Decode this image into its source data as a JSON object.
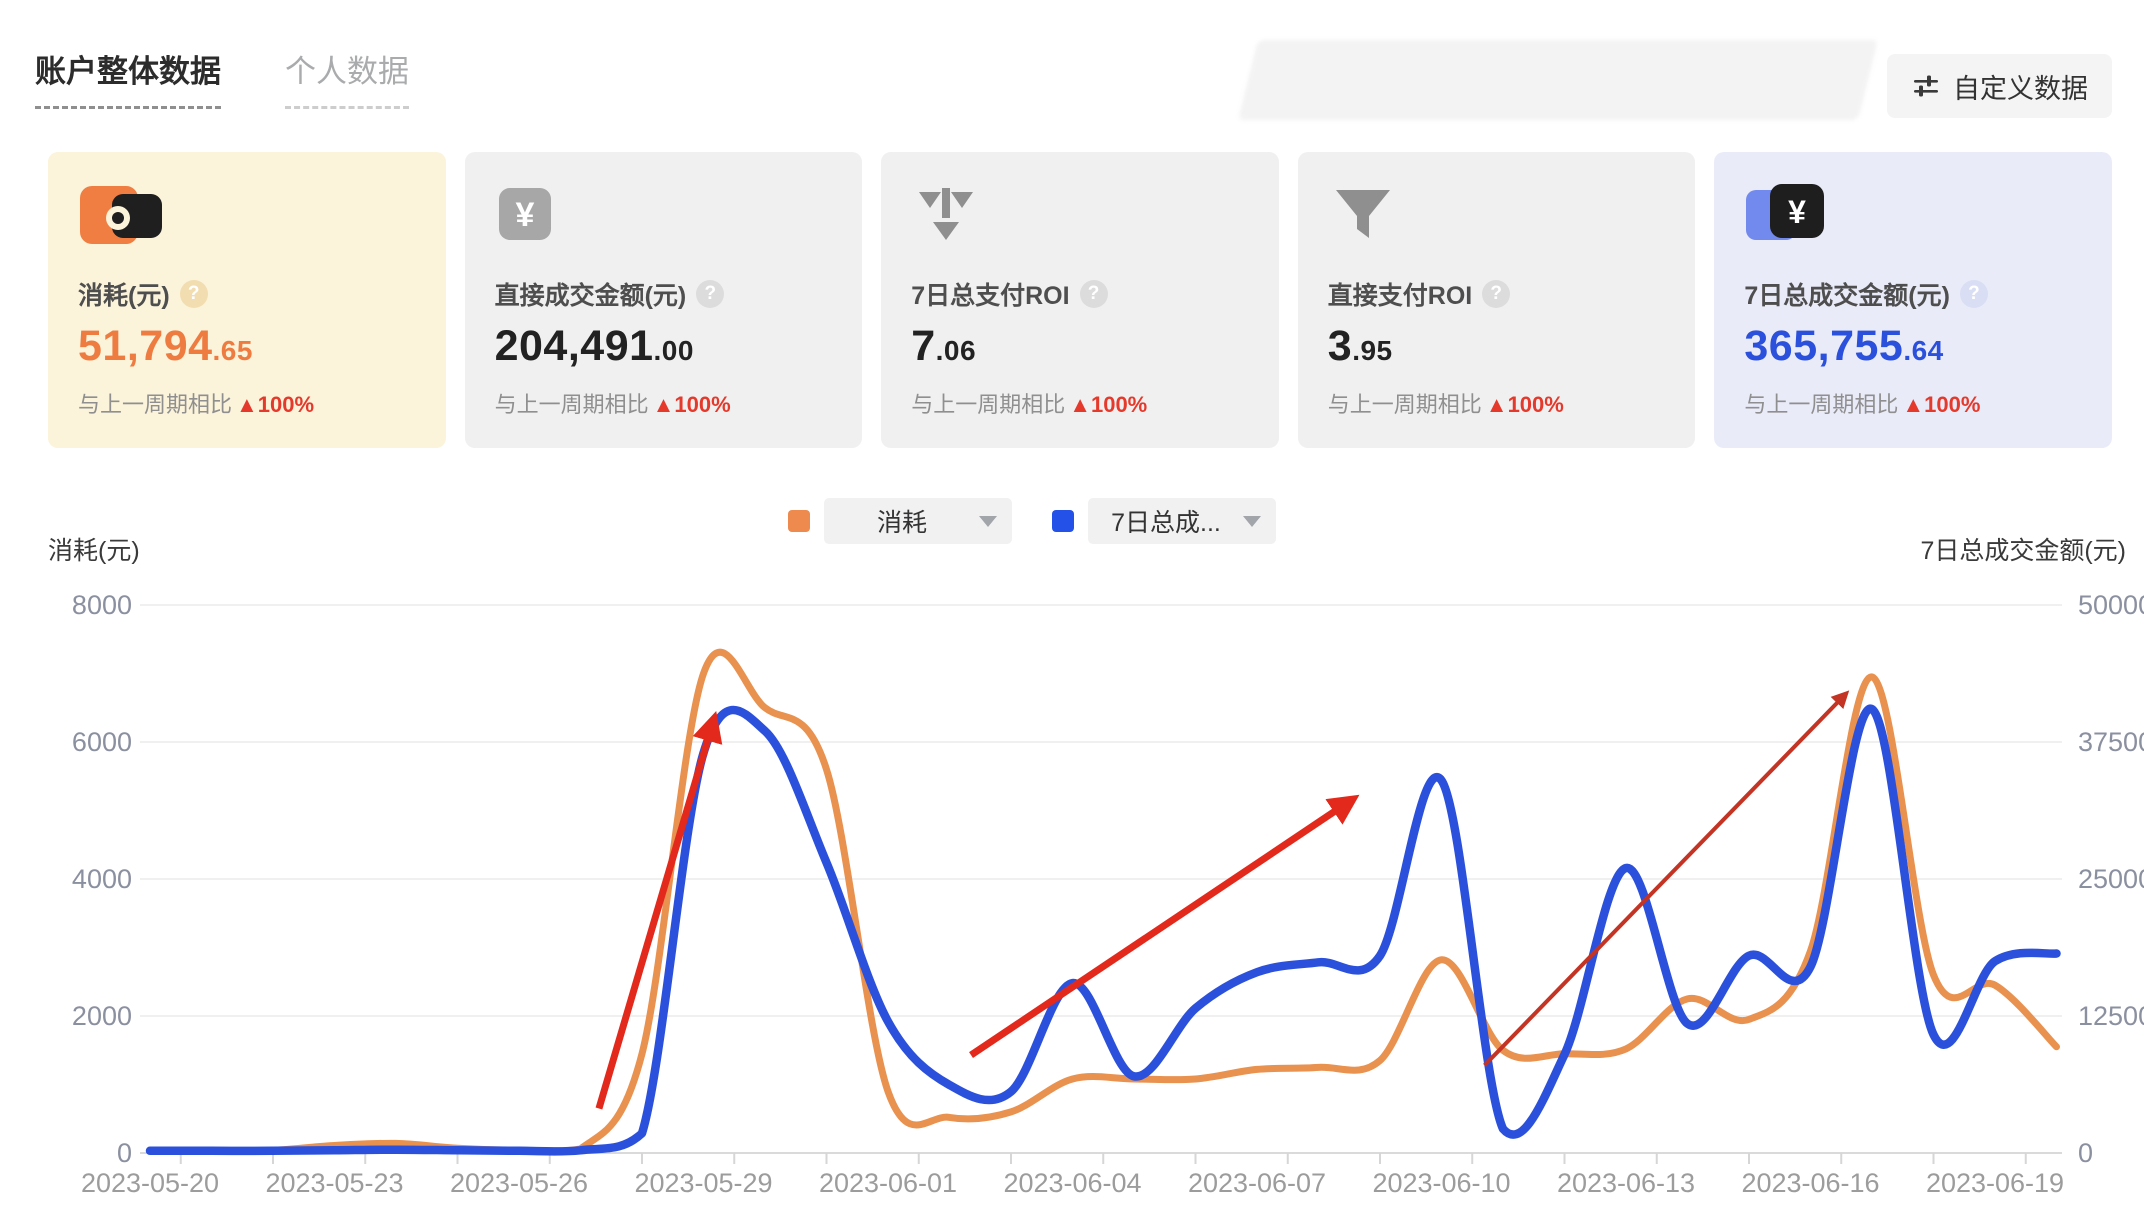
{
  "ui": {
    "help_glyph": "?",
    "yen_glyph": "¥"
  },
  "header": {
    "tabs": [
      {
        "label": "账户整体数据",
        "active": true
      },
      {
        "label": "个人数据",
        "active": false
      }
    ],
    "customize_button": {
      "label": "自定义数据"
    }
  },
  "cards": [
    {
      "label": "消耗(元)",
      "value_int": "51,794",
      "value_dec": ".65",
      "compare_prefix": "与上一周期相比",
      "compare_delta": "▲100%",
      "accent": "#ee7c41",
      "bg": "#fbf3da",
      "icon": "wallet-icon"
    },
    {
      "label": "直接成交金额(元)",
      "value_int": "204,491",
      "value_dec": ".00",
      "compare_prefix": "与上一周期相比",
      "compare_delta": "▲100%",
      "accent": "#222222",
      "bg": "#f0f0f1",
      "icon": "yen-badge-icon"
    },
    {
      "label": "7日总支付ROI",
      "value_int": "7",
      "value_dec": ".06",
      "compare_prefix": "与上一周期相比",
      "compare_delta": "▲100%",
      "accent": "#222222",
      "bg": "#f0f0f1",
      "icon": "funnel-arrows-icon"
    },
    {
      "label": "直接支付ROI",
      "value_int": "3",
      "value_dec": ".95",
      "compare_prefix": "与上一周期相比",
      "compare_delta": "▲100%",
      "accent": "#222222",
      "bg": "#f0f0f1",
      "icon": "funnel-icon"
    },
    {
      "label": "7日总成交金额(元)",
      "value_int": "365,755",
      "value_dec": ".64",
      "compare_prefix": "与上一周期相比",
      "compare_delta": "▲100%",
      "accent": "#2b50db",
      "bg": "#e9ebf9",
      "icon": "yen-dual-badge-icon"
    }
  ],
  "chart_data": {
    "type": "line",
    "title": "",
    "legend": [
      {
        "label": "消耗",
        "color": "#ee8a4d"
      },
      {
        "label": "7日总成...",
        "color": "#2452e9"
      }
    ],
    "left_axis": {
      "title": "消耗(元)",
      "ticks": [
        0,
        2000,
        4000,
        6000,
        8000
      ],
      "max": 8000
    },
    "right_axis": {
      "title": "7日总成交金额(元)",
      "ticks": [
        0,
        12500,
        25000,
        37500,
        50000
      ],
      "max": 50000
    },
    "x": [
      "2023-05-20",
      "2023-05-21",
      "2023-05-22",
      "2023-05-23",
      "2023-05-24",
      "2023-05-25",
      "2023-05-26",
      "2023-05-27",
      "2023-05-28",
      "2023-05-29",
      "2023-05-30",
      "2023-05-31",
      "2023-06-01",
      "2023-06-02",
      "2023-06-03",
      "2023-06-04",
      "2023-06-05",
      "2023-06-06",
      "2023-06-07",
      "2023-06-08",
      "2023-06-09",
      "2023-06-10",
      "2023-06-11",
      "2023-06-12",
      "2023-06-13",
      "2023-06-14",
      "2023-06-15",
      "2023-06-16",
      "2023-06-17",
      "2023-06-18",
      "2023-06-19",
      "2023-06-20"
    ],
    "x_ticks": [
      {
        "day": 0,
        "label": "2023-05-20"
      },
      {
        "day": 3,
        "label": "2023-05-23"
      },
      {
        "day": 6,
        "label": "2023-05-26"
      },
      {
        "day": 9,
        "label": "2023-05-29"
      },
      {
        "day": 12,
        "label": "2023-06-01"
      },
      {
        "day": 15,
        "label": "2023-06-04"
      },
      {
        "day": 18,
        "label": "2023-06-07"
      },
      {
        "day": 21,
        "label": "2023-06-10"
      },
      {
        "day": 24,
        "label": "2023-06-13"
      },
      {
        "day": 27,
        "label": "2023-06-16"
      },
      {
        "day": 30,
        "label": "2023-06-19"
      }
    ],
    "series": [
      {
        "name": "消耗",
        "axis": "left",
        "color": "#e9914f",
        "width": 7,
        "values": [
          30,
          30,
          40,
          110,
          140,
          70,
          40,
          60,
          1450,
          7000,
          6500,
          5600,
          900,
          520,
          600,
          1080,
          1080,
          1080,
          1220,
          1250,
          1350,
          2820,
          1500,
          1450,
          1520,
          2250,
          1950,
          2950,
          6950,
          2600,
          2450,
          1550
        ]
      },
      {
        "name": "7日总成交金额",
        "axis": "right",
        "color": "#2b51dc",
        "width": 8.5,
        "values": [
          200,
          200,
          200,
          250,
          300,
          250,
          200,
          250,
          1800,
          36500,
          38500,
          26500,
          12000,
          6200,
          5600,
          15500,
          7000,
          13200,
          16500,
          17400,
          18000,
          34000,
          2200,
          9000,
          26000,
          11800,
          18000,
          17000,
          40500,
          10800,
          17500,
          18200
        ]
      }
    ],
    "annotations": [
      {
        "type": "arrow",
        "from": [
          7.3,
          650
        ],
        "to": [
          9.15,
          6280
        ],
        "width": 7,
        "color": "#e2291b"
      },
      {
        "type": "arrow",
        "from": [
          13.35,
          1430
        ],
        "to": [
          19.5,
          5130
        ],
        "width": 7,
        "color": "#e2291b"
      },
      {
        "type": "arrow",
        "from": [
          21.7,
          1280
        ],
        "to": [
          27.55,
          6680
        ],
        "width": 4,
        "color": "#c43424"
      }
    ],
    "grid": true,
    "legend_position": "top-center"
  }
}
